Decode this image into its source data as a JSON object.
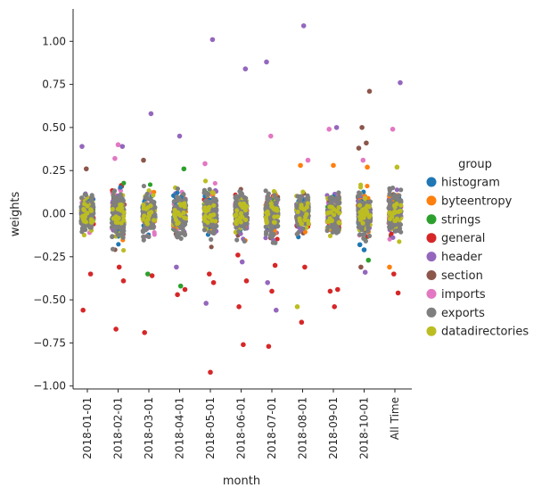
{
  "chart_data": {
    "type": "scatter",
    "subtype": "strip",
    "xlabel": "month",
    "ylabel": "weights",
    "categories": [
      "2018-01-01",
      "2018-02-01",
      "2018-03-01",
      "2018-04-01",
      "2018-05-01",
      "2018-06-01",
      "2018-07-01",
      "2018-08-01",
      "2018-09-01",
      "2018-10-01",
      "All Time"
    ],
    "ylim": [
      -1.05,
      1.2
    ],
    "yticks": [
      -1.0,
      -0.75,
      -0.5,
      -0.25,
      0.0,
      0.25,
      0.5,
      0.75,
      1.0
    ],
    "ytick_labels": [
      "−1.00",
      "−0.75",
      "−0.50",
      "−0.25",
      "0.00",
      "0.25",
      "0.50",
      "0.75",
      "1.00"
    ],
    "grid": false,
    "legend_title": "group",
    "legend_position": "right",
    "groups": [
      {
        "name": "histogram",
        "color": "#1f77b4"
      },
      {
        "name": "byteentropy",
        "color": "#ff7f0e"
      },
      {
        "name": "strings",
        "color": "#2ca02c"
      },
      {
        "name": "general",
        "color": "#d62728"
      },
      {
        "name": "header",
        "color": "#9467bd"
      },
      {
        "name": "section",
        "color": "#8c564b"
      },
      {
        "name": "imports",
        "color": "#e377c2"
      },
      {
        "name": "exports",
        "color": "#7f7f7f"
      },
      {
        "name": "datadirectories",
        "color": "#bcbd22"
      }
    ],
    "dense_spread": [
      0.18,
      0.28,
      0.2,
      0.22,
      0.22,
      0.2,
      0.22,
      0.18,
      0.2,
      0.22,
      0.2
    ],
    "outliers": [
      {
        "category": "2018-01-01",
        "group": "header",
        "y": 0.39
      },
      {
        "category": "2018-01-01",
        "group": "section",
        "y": 0.26
      },
      {
        "category": "2018-01-01",
        "group": "general",
        "y": -0.35
      },
      {
        "category": "2018-01-01",
        "group": "general",
        "y": -0.56
      },
      {
        "category": "2018-02-01",
        "group": "imports",
        "y": 0.4
      },
      {
        "category": "2018-02-01",
        "group": "header",
        "y": 0.39
      },
      {
        "category": "2018-02-01",
        "group": "imports",
        "y": 0.32
      },
      {
        "category": "2018-02-01",
        "group": "general",
        "y": -0.31
      },
      {
        "category": "2018-02-01",
        "group": "general",
        "y": -0.39
      },
      {
        "category": "2018-02-01",
        "group": "general",
        "y": -0.67
      },
      {
        "category": "2018-03-01",
        "group": "header",
        "y": 0.58
      },
      {
        "category": "2018-03-01",
        "group": "section",
        "y": 0.31
      },
      {
        "category": "2018-03-01",
        "group": "strings",
        "y": -0.35
      },
      {
        "category": "2018-03-01",
        "group": "general",
        "y": -0.36
      },
      {
        "category": "2018-03-01",
        "group": "general",
        "y": -0.69
      },
      {
        "category": "2018-04-01",
        "group": "header",
        "y": 0.45
      },
      {
        "category": "2018-04-01",
        "group": "strings",
        "y": 0.26
      },
      {
        "category": "2018-04-01",
        "group": "header",
        "y": -0.31
      },
      {
        "category": "2018-04-01",
        "group": "strings",
        "y": -0.42
      },
      {
        "category": "2018-04-01",
        "group": "general",
        "y": -0.44
      },
      {
        "category": "2018-04-01",
        "group": "general",
        "y": -0.47
      },
      {
        "category": "2018-05-01",
        "group": "header",
        "y": 1.01
      },
      {
        "category": "2018-05-01",
        "group": "imports",
        "y": 0.29
      },
      {
        "category": "2018-05-01",
        "group": "general",
        "y": -0.35
      },
      {
        "category": "2018-05-01",
        "group": "general",
        "y": -0.4
      },
      {
        "category": "2018-05-01",
        "group": "header",
        "y": -0.52
      },
      {
        "category": "2018-05-01",
        "group": "general",
        "y": -0.92
      },
      {
        "category": "2018-06-01",
        "group": "header",
        "y": 0.84
      },
      {
        "category": "2018-06-01",
        "group": "general",
        "y": -0.24
      },
      {
        "category": "2018-06-01",
        "group": "header",
        "y": -0.28
      },
      {
        "category": "2018-06-01",
        "group": "general",
        "y": -0.39
      },
      {
        "category": "2018-06-01",
        "group": "general",
        "y": -0.54
      },
      {
        "category": "2018-06-01",
        "group": "general",
        "y": -0.76
      },
      {
        "category": "2018-07-01",
        "group": "header",
        "y": 0.88
      },
      {
        "category": "2018-07-01",
        "group": "imports",
        "y": 0.45
      },
      {
        "category": "2018-07-01",
        "group": "general",
        "y": -0.3
      },
      {
        "category": "2018-07-01",
        "group": "header",
        "y": -0.4
      },
      {
        "category": "2018-07-01",
        "group": "general",
        "y": -0.45
      },
      {
        "category": "2018-07-01",
        "group": "header",
        "y": -0.56
      },
      {
        "category": "2018-07-01",
        "group": "general",
        "y": -0.77
      },
      {
        "category": "2018-08-01",
        "group": "header",
        "y": 1.09
      },
      {
        "category": "2018-08-01",
        "group": "imports",
        "y": 0.31
      },
      {
        "category": "2018-08-01",
        "group": "byteentropy",
        "y": 0.28
      },
      {
        "category": "2018-08-01",
        "group": "general",
        "y": -0.31
      },
      {
        "category": "2018-08-01",
        "group": "datadirectories",
        "y": -0.54
      },
      {
        "category": "2018-08-01",
        "group": "general",
        "y": -0.63
      },
      {
        "category": "2018-09-01",
        "group": "header",
        "y": 0.5
      },
      {
        "category": "2018-09-01",
        "group": "imports",
        "y": 0.49
      },
      {
        "category": "2018-09-01",
        "group": "byteentropy",
        "y": 0.28
      },
      {
        "category": "2018-09-01",
        "group": "general",
        "y": -0.44
      },
      {
        "category": "2018-09-01",
        "group": "general",
        "y": -0.45
      },
      {
        "category": "2018-09-01",
        "group": "general",
        "y": -0.54
      },
      {
        "category": "2018-10-01",
        "group": "section",
        "y": 0.71
      },
      {
        "category": "2018-10-01",
        "group": "section",
        "y": 0.5
      },
      {
        "category": "2018-10-01",
        "group": "section",
        "y": 0.41
      },
      {
        "category": "2018-10-01",
        "group": "section",
        "y": 0.38
      },
      {
        "category": "2018-10-01",
        "group": "imports",
        "y": 0.31
      },
      {
        "category": "2018-10-01",
        "group": "byteentropy",
        "y": 0.27
      },
      {
        "category": "2018-10-01",
        "group": "histogram",
        "y": -0.18
      },
      {
        "category": "2018-10-01",
        "group": "histogram",
        "y": -0.21
      },
      {
        "category": "2018-10-01",
        "group": "strings",
        "y": -0.27
      },
      {
        "category": "2018-10-01",
        "group": "section",
        "y": -0.31
      },
      {
        "category": "2018-10-01",
        "group": "header",
        "y": -0.34
      },
      {
        "category": "All Time",
        "group": "header",
        "y": 0.76
      },
      {
        "category": "All Time",
        "group": "imports",
        "y": 0.49
      },
      {
        "category": "All Time",
        "group": "datadirectories",
        "y": 0.27
      },
      {
        "category": "All Time",
        "group": "byteentropy",
        "y": -0.31
      },
      {
        "category": "All Time",
        "group": "general",
        "y": -0.35
      },
      {
        "category": "All Time",
        "group": "general",
        "y": -0.46
      }
    ]
  }
}
